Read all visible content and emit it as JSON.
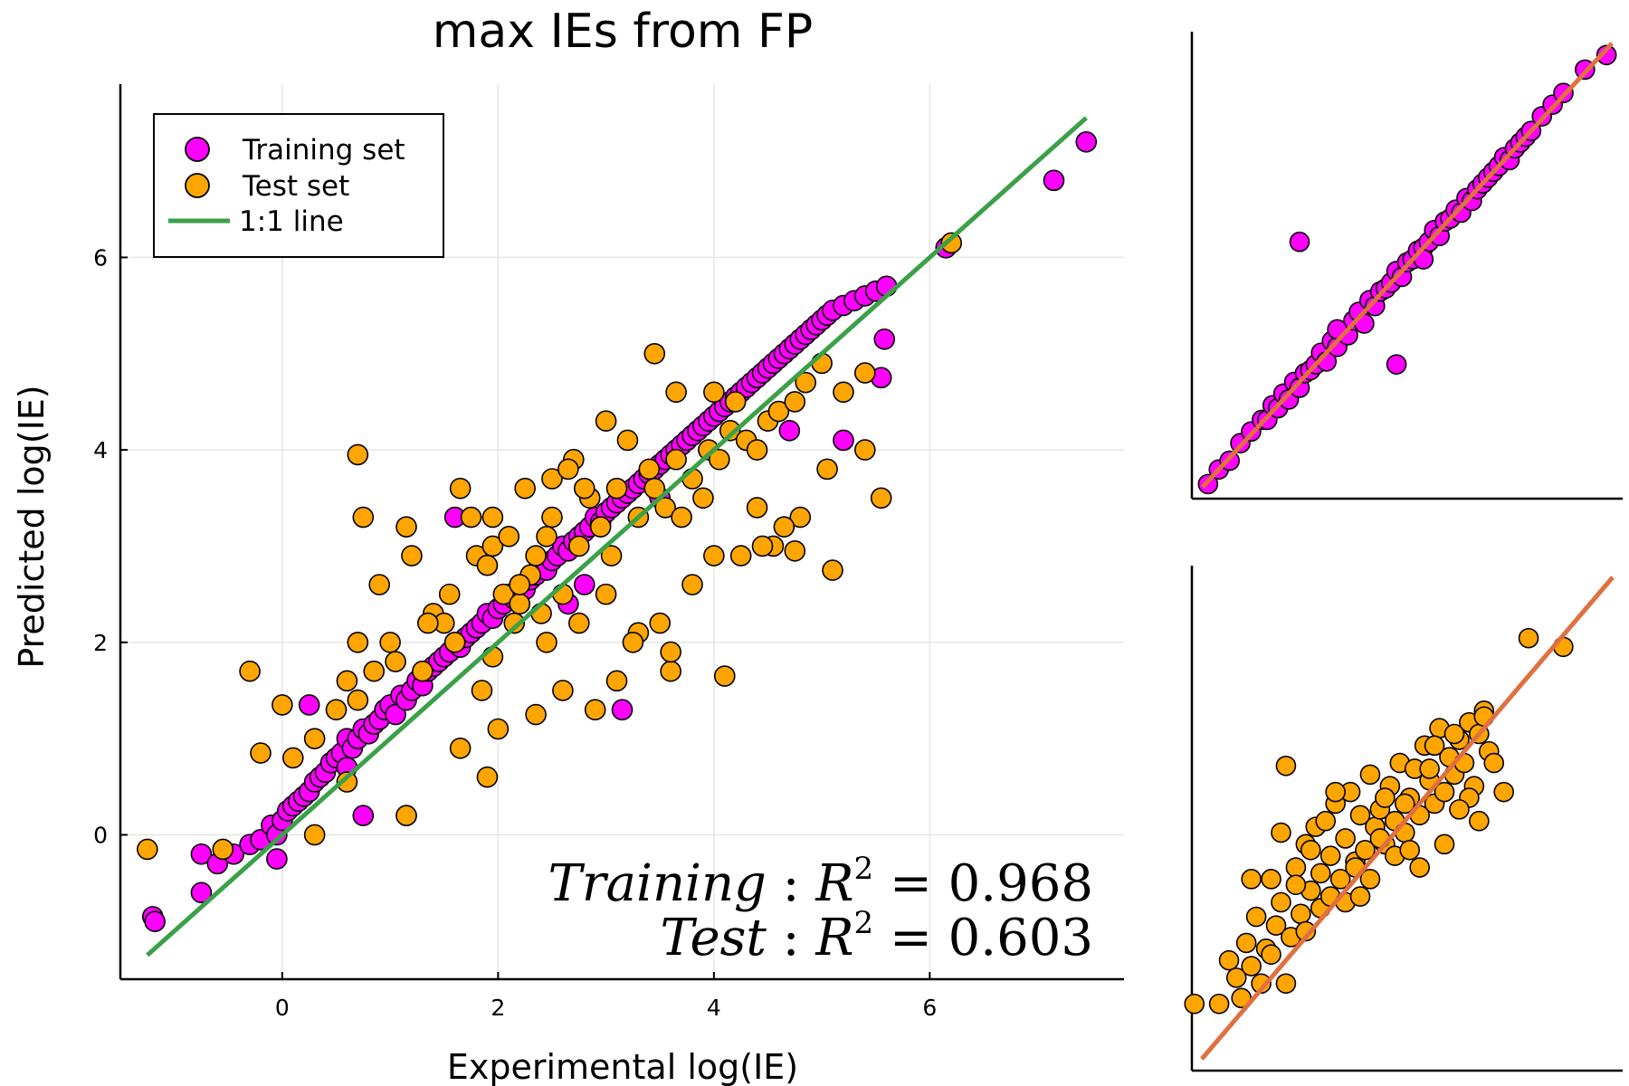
{
  "chart_data": [
    {
      "panel": "main",
      "type": "scatter",
      "title": "max IEs from FP",
      "xlabel": "Experimental log(IE)",
      "ylabel": "Predicted log(IE)",
      "xlim": [
        -1.5,
        7.8
      ],
      "ylim": [
        -1.5,
        7.8
      ],
      "xticks": [
        0,
        2,
        4,
        6
      ],
      "yticks": [
        0,
        2,
        4,
        6
      ],
      "grid": true,
      "legend_position": "top-left",
      "legend": [
        "Training set",
        "Test set",
        "1:1 line"
      ],
      "annotations": [
        "Training: R^2 = 0.968",
        "Test: R^2 = 0.603"
      ],
      "annotation_parts": [
        {
          "name": "Training",
          "r2": "0.968"
        },
        {
          "name": "Test",
          "r2": "0.603"
        }
      ],
      "series": [
        {
          "name": "Training set",
          "color": "#FF00FF",
          "x": [
            -1.2,
            -1.18,
            -0.75,
            -0.75,
            -0.6,
            -0.45,
            -0.3,
            -0.2,
            -0.1,
            -0.05,
            0.0,
            0.05,
            0.1,
            0.15,
            0.2,
            0.25,
            0.3,
            0.35,
            0.4,
            0.45,
            0.5,
            0.55,
            0.6,
            0.6,
            0.65,
            0.7,
            0.75,
            0.8,
            0.85,
            0.9,
            0.95,
            1.0,
            1.05,
            1.1,
            1.15,
            1.2,
            1.25,
            1.3,
            1.35,
            1.4,
            1.45,
            1.5,
            1.55,
            1.6,
            1.65,
            1.7,
            1.75,
            1.8,
            1.85,
            1.9,
            1.95,
            2.0,
            2.05,
            2.1,
            2.15,
            2.2,
            2.25,
            2.3,
            2.35,
            2.4,
            2.45,
            2.5,
            2.55,
            2.6,
            2.65,
            2.7,
            2.75,
            2.8,
            2.85,
            2.9,
            2.95,
            3.0,
            3.05,
            3.1,
            3.15,
            3.2,
            3.25,
            3.3,
            3.35,
            3.4,
            3.45,
            3.5,
            3.55,
            3.6,
            3.65,
            3.7,
            3.75,
            3.8,
            3.85,
            3.9,
            3.95,
            4.0,
            4.05,
            4.1,
            4.15,
            4.2,
            4.25,
            4.3,
            4.35,
            4.4,
            4.45,
            4.5,
            4.55,
            4.6,
            4.65,
            4.7,
            4.75,
            4.8,
            4.85,
            4.9,
            4.95,
            5.0,
            5.05,
            5.1,
            5.2,
            5.3,
            5.4,
            5.5,
            5.6,
            5.55,
            5.58,
            6.15,
            7.15,
            7.45,
            0.25,
            0.75,
            1.6,
            3.15,
            -0.05,
            2.65,
            2.8,
            3.5,
            4.7,
            5.2
          ],
          "y": [
            -0.85,
            -0.9,
            -0.2,
            -0.6,
            -0.3,
            -0.2,
            -0.1,
            -0.05,
            0.1,
            0.0,
            0.15,
            0.25,
            0.3,
            0.35,
            0.4,
            0.45,
            0.55,
            0.6,
            0.65,
            0.75,
            0.8,
            0.85,
            1.0,
            0.7,
            0.9,
            1.0,
            1.1,
            1.05,
            1.15,
            1.2,
            1.3,
            1.35,
            1.25,
            1.45,
            1.4,
            1.5,
            1.6,
            1.55,
            1.7,
            1.75,
            1.8,
            1.85,
            1.9,
            2.0,
            1.95,
            2.05,
            2.1,
            2.15,
            2.2,
            2.3,
            2.25,
            2.35,
            2.4,
            2.5,
            2.45,
            2.6,
            2.55,
            2.65,
            2.7,
            2.8,
            2.75,
            2.85,
            2.9,
            3.0,
            2.95,
            3.05,
            3.1,
            3.15,
            3.2,
            3.3,
            3.25,
            3.35,
            3.4,
            3.45,
            3.5,
            3.55,
            3.6,
            3.65,
            3.7,
            3.75,
            3.8,
            3.85,
            3.9,
            3.95,
            4.0,
            4.05,
            4.1,
            4.15,
            4.2,
            4.25,
            4.3,
            4.35,
            4.4,
            4.45,
            4.5,
            4.55,
            4.6,
            4.65,
            4.7,
            4.75,
            4.8,
            4.85,
            4.9,
            4.95,
            5.0,
            5.05,
            5.1,
            5.15,
            5.2,
            5.25,
            5.3,
            5.35,
            5.4,
            5.45,
            5.5,
            5.55,
            5.6,
            5.65,
            5.7,
            4.75,
            5.15,
            6.1,
            6.8,
            7.2,
            1.35,
            0.2,
            3.3,
            1.3,
            -0.25,
            2.4,
            2.6,
            3.5,
            4.2,
            4.1
          ]
        },
        {
          "name": "Test set",
          "color": "#FFA500",
          "x": [
            -1.25,
            -0.55,
            0.0,
            0.1,
            0.3,
            0.5,
            0.6,
            0.7,
            0.75,
            0.9,
            1.0,
            1.05,
            1.15,
            1.2,
            1.3,
            1.4,
            1.5,
            1.6,
            1.65,
            1.75,
            1.8,
            1.9,
            1.95,
            2.05,
            2.1,
            2.2,
            2.3,
            2.35,
            2.45,
            2.5,
            2.6,
            2.7,
            2.75,
            2.85,
            2.95,
            3.05,
            3.1,
            3.2,
            3.3,
            3.4,
            3.45,
            3.55,
            3.65,
            3.7,
            3.8,
            3.9,
            3.95,
            4.05,
            4.15,
            4.2,
            4.3,
            4.4,
            4.5,
            4.6,
            4.75,
            4.85,
            5.0,
            5.2,
            5.4,
            5.55,
            6.2,
            0.7,
            0.7,
            1.15,
            1.65,
            1.95,
            2.25,
            2.5,
            2.65,
            2.8,
            3.0,
            3.45,
            3.65,
            4.0,
            4.75,
            5.05,
            5.1,
            5.4,
            1.9,
            1.15,
            0.3,
            -0.3,
            -0.2,
            0.6,
            1.85,
            2.2,
            2.6,
            3.3,
            3.5,
            3.6,
            4.1,
            4.25,
            4.4,
            4.55,
            4.8,
            2.9,
            3.1,
            2.0,
            2.35,
            2.45,
            0.85,
            1.35,
            1.55,
            1.95,
            2.15,
            2.4,
            2.75,
            3.0,
            3.25,
            3.6,
            3.8,
            4.0,
            4.45,
            4.65
          ],
          "y": [
            -0.15,
            -0.15,
            1.35,
            0.8,
            0.0,
            1.3,
            1.6,
            3.95,
            3.3,
            2.6,
            2.0,
            1.8,
            3.2,
            2.9,
            1.7,
            2.3,
            2.2,
            2.0,
            3.6,
            3.3,
            2.9,
            2.8,
            3.0,
            2.5,
            3.1,
            2.4,
            2.7,
            2.9,
            3.1,
            3.3,
            2.5,
            3.9,
            3.0,
            3.5,
            3.2,
            2.9,
            3.6,
            4.1,
            3.3,
            3.8,
            3.6,
            3.4,
            3.9,
            3.3,
            3.7,
            3.5,
            4.0,
            3.9,
            4.2,
            4.5,
            4.1,
            4.0,
            4.3,
            4.4,
            4.5,
            4.7,
            4.9,
            4.6,
            4.8,
            3.5,
            6.15,
            2.0,
            1.4,
            0.2,
            0.9,
            3.3,
            3.6,
            3.7,
            3.8,
            3.6,
            4.3,
            5.0,
            4.6,
            4.6,
            2.95,
            3.8,
            2.75,
            4.0,
            0.6,
            0.2,
            1.0,
            1.7,
            0.85,
            0.55,
            1.5,
            2.6,
            1.5,
            2.1,
            2.2,
            1.7,
            1.65,
            2.9,
            3.4,
            3.0,
            3.3,
            1.3,
            1.6,
            1.1,
            1.25,
            2.0,
            1.7,
            2.2,
            2.5,
            1.85,
            2.2,
            2.3,
            2.2,
            2.5,
            2.0,
            1.9,
            2.6,
            2.9,
            3.0,
            3.2
          ]
        },
        {
          "name": "1:1 line",
          "color": "#3CA048",
          "line": true,
          "x": [
            -1.25,
            7.45
          ],
          "y": [
            -1.25,
            7.45
          ]
        }
      ]
    },
    {
      "panel": "inset-top",
      "type": "scatter",
      "axes_labels": false,
      "line_color": "#E07040",
      "series": [
        {
          "name": "Training set",
          "color": "#FF00FF",
          "x": [
            -1.0,
            -0.8,
            -0.6,
            -0.4,
            -0.2,
            0.0,
            0.1,
            0.2,
            0.3,
            0.4,
            0.5,
            0.6,
            0.7,
            0.8,
            0.9,
            1.0,
            1.1,
            1.2,
            1.3,
            1.4,
            1.5,
            1.6,
            1.7,
            1.8,
            1.9,
            2.0,
            2.1,
            2.2,
            2.3,
            2.4,
            2.5,
            2.6,
            2.7,
            2.8,
            2.9,
            3.0,
            3.1,
            3.2,
            3.3,
            3.4,
            3.5,
            3.6,
            3.7,
            3.8,
            3.9,
            4.0,
            4.1,
            4.2,
            4.3,
            4.4,
            4.5,
            4.6,
            4.7,
            4.8,
            4.9,
            5.0,
            5.2,
            5.4,
            5.6,
            6.0,
            6.4,
            0.7,
            2.5,
            1.4,
            3.0
          ],
          "y": [
            -1.05,
            -0.8,
            -0.65,
            -0.35,
            -0.15,
            0.05,
            0.05,
            0.3,
            0.25,
            0.5,
            0.4,
            0.7,
            0.6,
            0.85,
            0.9,
            1.0,
            1.2,
            1.05,
            1.4,
            1.3,
            1.55,
            1.5,
            1.75,
            1.9,
            1.7,
            2.1,
            2.0,
            2.25,
            2.3,
            2.4,
            2.6,
            2.5,
            2.75,
            2.8,
            2.95,
            3.0,
            3.1,
            3.3,
            3.2,
            3.45,
            3.5,
            3.65,
            3.6,
            3.85,
            3.8,
            4.0,
            4.1,
            4.2,
            4.3,
            4.4,
            4.55,
            4.5,
            4.7,
            4.8,
            4.9,
            5.0,
            5.25,
            5.45,
            5.65,
            6.05,
            6.3,
            3.1,
            1.0,
            1.6,
            2.8
          ]
        }
      ],
      "line": {
        "x": [
          -1.1,
          6.5
        ],
        "y": [
          -1.1,
          6.5
        ]
      },
      "xlim": [
        -1.3,
        6.7
      ],
      "ylim": [
        -1.3,
        6.7
      ]
    },
    {
      "panel": "inset-bottom",
      "type": "scatter",
      "axes_labels": false,
      "line_color": "#E07040",
      "series": [
        {
          "name": "Test set",
          "color": "#FFA500",
          "x": [
            -1.25,
            -0.75,
            -0.55,
            -0.4,
            -0.3,
            -0.2,
            -0.1,
            0.0,
            0.1,
            0.2,
            0.3,
            0.4,
            0.5,
            0.6,
            0.7,
            0.8,
            0.9,
            1.0,
            1.1,
            1.2,
            1.3,
            1.4,
            1.5,
            1.6,
            1.7,
            1.8,
            1.9,
            2.0,
            2.1,
            2.2,
            2.3,
            2.4,
            2.5,
            2.6,
            2.7,
            2.8,
            2.9,
            3.0,
            3.1,
            3.2,
            3.3,
            3.4,
            3.5,
            3.6,
            3.7,
            3.8,
            3.9,
            4.0,
            4.1,
            4.2,
            4.3,
            4.4,
            4.5,
            4.6,
            4.7,
            4.8,
            5.0,
            5.5,
            6.2,
            0.6,
            1.0,
            1.5,
            2.0,
            2.5,
            3.0,
            3.5,
            4.0,
            4.5,
            0.3,
            0.8,
            1.3,
            1.8,
            2.3,
            2.8,
            3.3,
            3.8,
            4.3,
            1.1,
            2.1,
            3.1,
            4.1,
            -0.1,
            0.5,
            1.6,
            2.6,
            3.6,
            4.6
          ],
          "y": [
            -0.15,
            -0.15,
            0.6,
            0.3,
            -0.05,
            0.9,
            0.5,
            1.35,
            0.2,
            0.8,
            2.0,
            1.2,
            1.6,
            3.95,
            1.0,
            2.2,
            1.4,
            2.6,
            1.8,
            2.9,
            1.5,
            3.0,
            2.4,
            3.3,
            2.0,
            2.7,
            3.5,
            2.3,
            3.1,
            2.5,
            3.8,
            2.9,
            3.2,
            2.6,
            3.6,
            3.0,
            4.0,
            2.8,
            3.4,
            3.9,
            3.1,
            4.3,
            3.7,
            3.3,
            4.6,
            3.5,
            4.1,
            3.8,
            4.4,
            4.0,
            4.7,
            3.6,
            4.5,
            4.9,
            4.2,
            4.0,
            3.5,
            6.15,
            6.0,
            0.2,
            1.1,
            1.7,
            2.2,
            2.7,
            3.3,
            3.9,
            4.5,
            3.0,
            0.7,
            1.9,
            2.1,
            1.6,
            2.0,
            2.4,
            2.2,
            2.6,
            3.4,
            2.5,
            1.7,
            2.5,
            3.2,
            2.0,
            2.8,
            3.5,
            3.4,
            4.3,
            4.8
          ]
        }
      ],
      "line": {
        "x": [
          -1.1,
          7.2
        ],
        "y": [
          -1.1,
          7.2
        ]
      },
      "xlim": [
        -1.3,
        7.4
      ],
      "ylim": [
        -1.3,
        7.4
      ]
    }
  ]
}
